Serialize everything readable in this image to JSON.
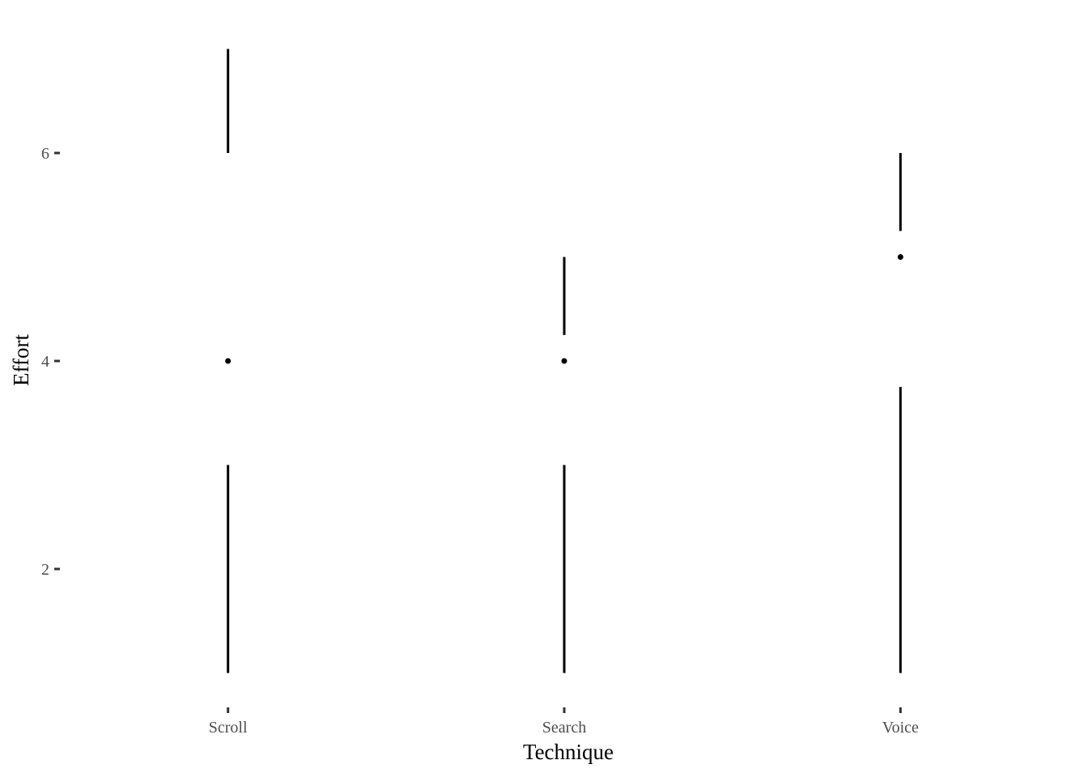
{
  "chart_data": {
    "type": "boxplot",
    "xlabel": "Technique",
    "ylabel": "Effort",
    "categories": [
      "Scroll",
      "Search",
      "Voice"
    ],
    "ylim": [
      0.7,
      7.3
    ],
    "yticks": [
      2,
      4,
      6
    ],
    "grid": false,
    "series": [
      {
        "category": "Scroll",
        "min": 1,
        "q1": 3,
        "median": 4,
        "q3": 6,
        "max": 7
      },
      {
        "category": "Search",
        "min": 1,
        "q1": 3,
        "median": 4,
        "q3": 4.25,
        "max": 5
      },
      {
        "category": "Voice",
        "min": 1,
        "q1": 3.75,
        "median": 5,
        "q3": 5.25,
        "max": 6
      }
    ]
  }
}
